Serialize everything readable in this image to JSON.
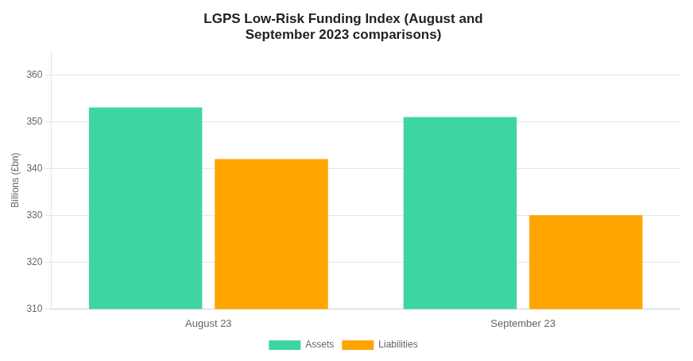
{
  "chart_data": {
    "type": "bar",
    "title": "LGPS Low-Risk Funding Index (August and\nSeptember 2023 comparisons)",
    "ylabel": "Billions (£bn)",
    "categories": [
      "August 23",
      "September 23"
    ],
    "series": [
      {
        "name": "Assets",
        "color": "#3DD6A3",
        "values": [
          353,
          351
        ]
      },
      {
        "name": "Liabilities",
        "color": "#FFA500",
        "values": [
          342,
          330
        ]
      }
    ],
    "ylim": [
      310,
      365
    ],
    "yticks": [
      310,
      320,
      330,
      340,
      350,
      360
    ],
    "grid": true,
    "legend": "bottom"
  }
}
